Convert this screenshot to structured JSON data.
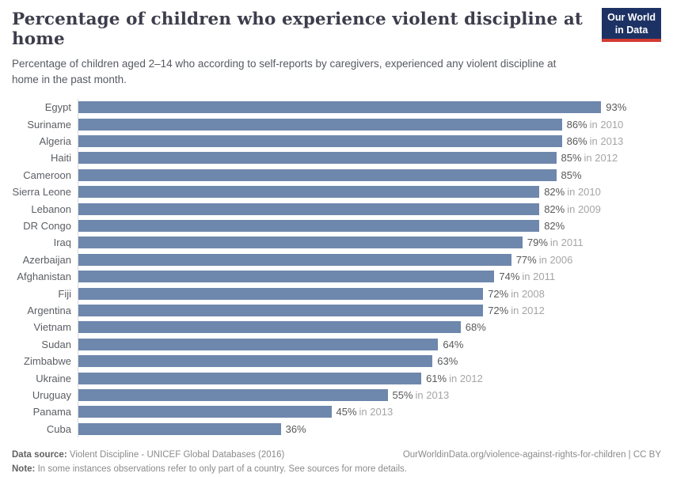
{
  "header": {
    "title": "Percentage of children who experience violent discipline at home",
    "subtitle": "Percentage of children aged 2–14 who according to self-reports by caregivers, experienced any violent discipline at home in the past month.",
    "logo": {
      "line1": "Our World",
      "line2": "in Data"
    }
  },
  "chart_data": {
    "type": "bar",
    "orientation": "horizontal",
    "title": "Percentage of children who experience violent discipline at home",
    "unit": "%",
    "xlim": [
      0,
      100
    ],
    "grid": false,
    "bar_color": "#6e87ac",
    "categories": [
      "Egypt",
      "Suriname",
      "Algeria",
      "Haiti",
      "Cameroon",
      "Sierra Leone",
      "Lebanon",
      "DR Congo",
      "Iraq",
      "Azerbaijan",
      "Afghanistan",
      "Fiji",
      "Argentina",
      "Vietnam",
      "Sudan",
      "Zimbabwe",
      "Ukraine",
      "Uruguay",
      "Panama",
      "Cuba"
    ],
    "values": [
      93,
      86,
      86,
      85,
      85,
      82,
      82,
      82,
      79,
      77,
      74,
      72,
      72,
      68,
      64,
      63,
      61,
      55,
      45,
      36
    ],
    "value_labels": [
      "93%",
      "86%",
      "86%",
      "85%",
      "85%",
      "82%",
      "82%",
      "82%",
      "79%",
      "77%",
      "74%",
      "72%",
      "72%",
      "68%",
      "64%",
      "63%",
      "61%",
      "55%",
      "45%",
      "36%"
    ],
    "year_labels": [
      "",
      "in 2010",
      "in 2013",
      "in 2012",
      "",
      "in 2010",
      "in 2009",
      "",
      "in 2011",
      "in 2006",
      "in 2011",
      "in 2008",
      "in 2012",
      "",
      "",
      "",
      "in 2012",
      "in 2013",
      "in 2013",
      ""
    ]
  },
  "footer": {
    "data_source_label": "Data source:",
    "data_source_text": " Violent Discipline - UNICEF Global Databases (2016)",
    "link": "OurWorldinData.org/violence-against-rights-for-children | CC BY",
    "note_label": "Note:",
    "note_text": " In some instances observations refer to only part of a country. See sources for more details."
  },
  "colors": {
    "bar": "#6e87ac",
    "title": "#3d3d4c",
    "logo_bg": "#1d3264",
    "logo_stripe": "#d23b32",
    "axis_line": "#dcdcdc",
    "year_text": "#a5a5a5"
  }
}
